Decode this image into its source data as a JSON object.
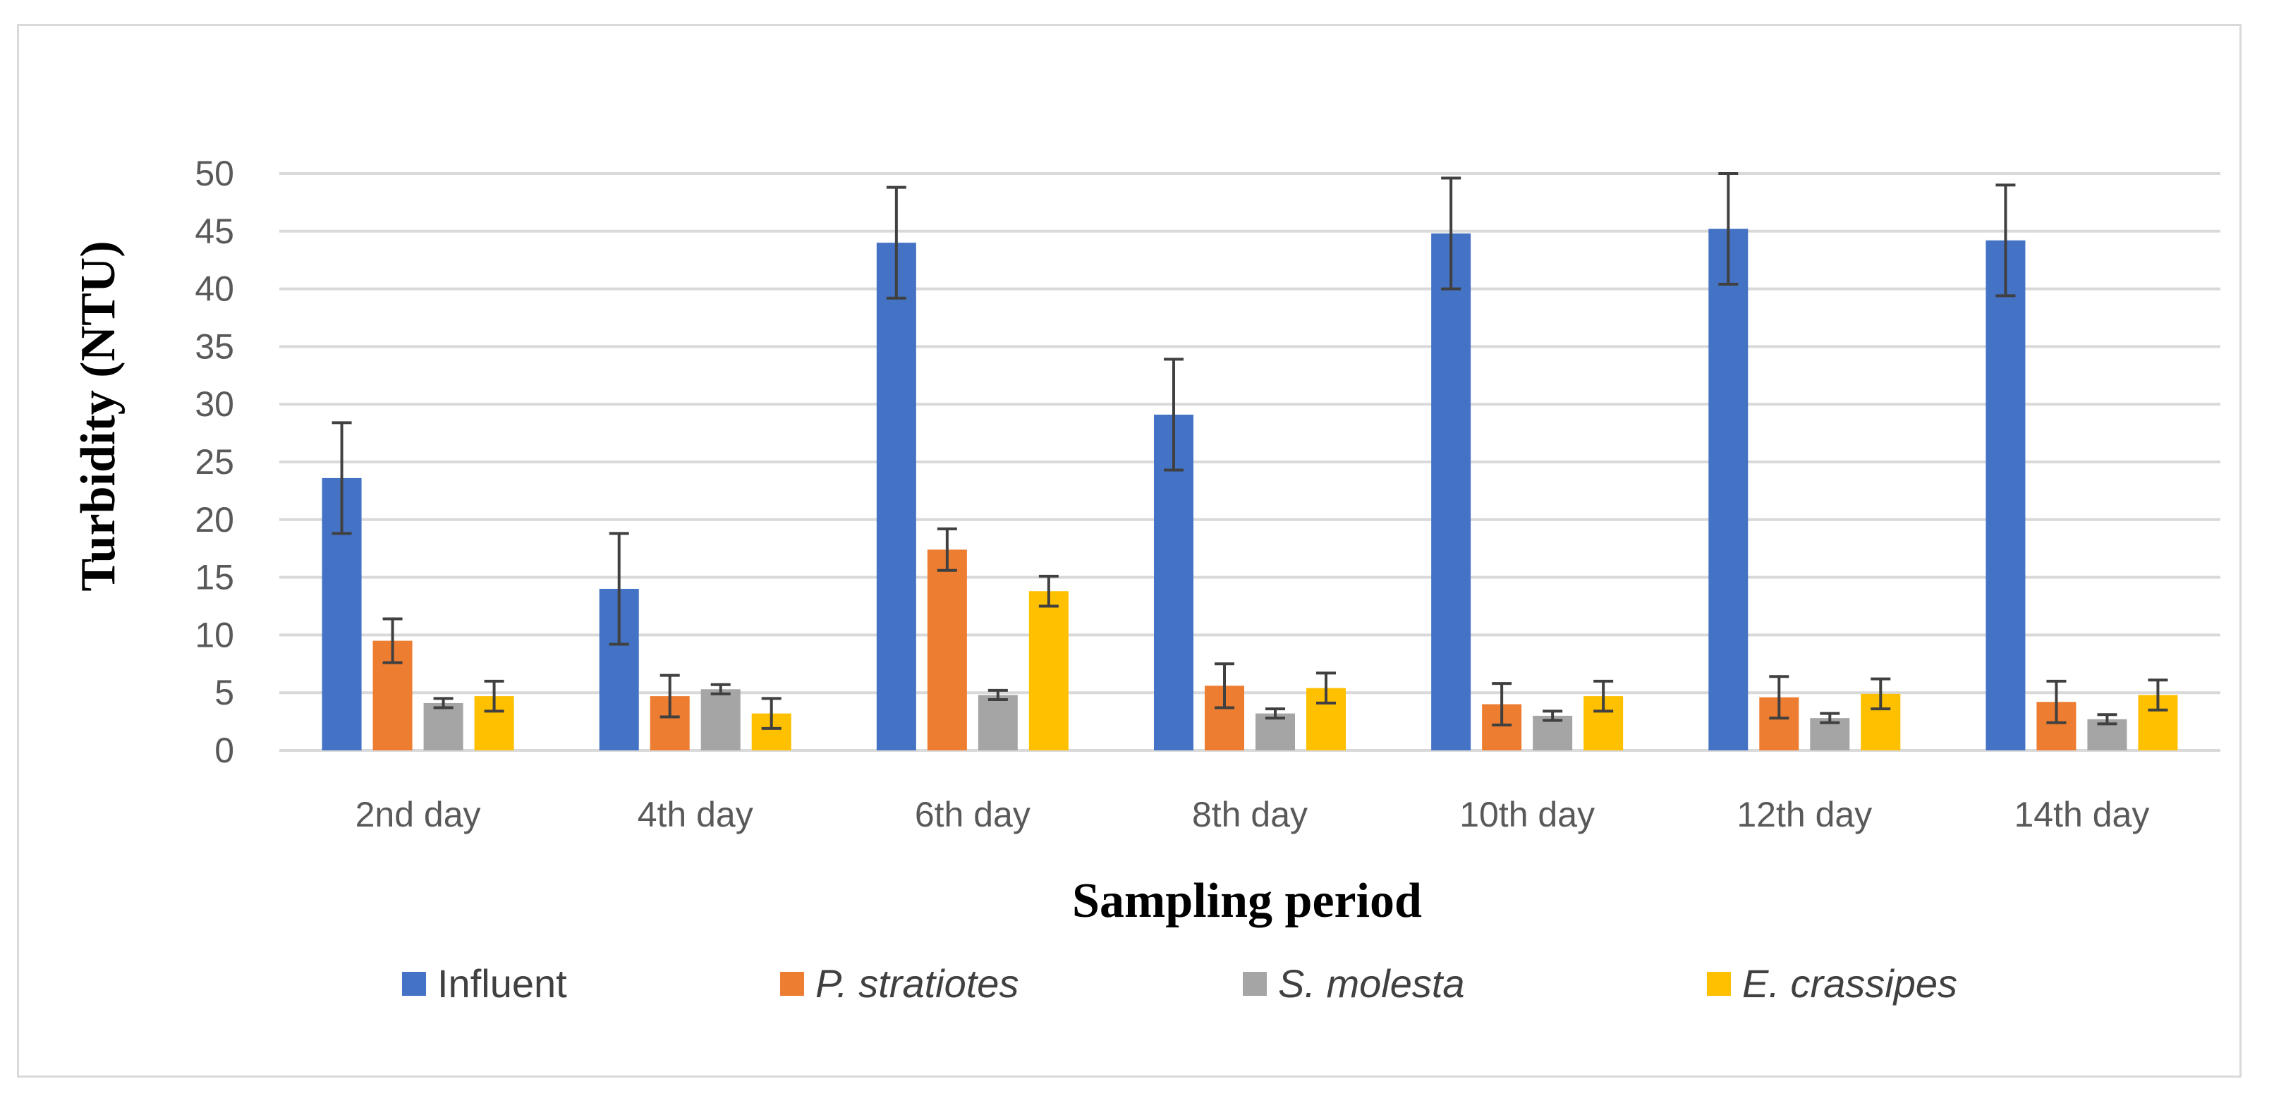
{
  "chart_data": {
    "type": "bar",
    "title": "",
    "xlabel": "Sampling period",
    "ylabel": "Turbidity (NTU)",
    "ylim": [
      0,
      50
    ],
    "yticks": [
      0,
      5,
      10,
      15,
      20,
      25,
      30,
      35,
      40,
      45,
      50
    ],
    "grid": true,
    "legend_position": "bottom",
    "categories": [
      "2nd day",
      "4th day",
      "6th day",
      "8th day",
      "10th day",
      "12th day",
      "14th day"
    ],
    "series": [
      {
        "name": "Influent",
        "italic": false,
        "color": "#4472C4",
        "values": [
          23.6,
          14.0,
          44.0,
          29.1,
          44.8,
          45.2,
          44.2
        ],
        "errors": [
          4.8,
          4.8,
          4.8,
          4.8,
          4.8,
          4.8,
          4.8
        ]
      },
      {
        "name": "P. stratiotes",
        "italic": true,
        "color": "#ED7D31",
        "values": [
          9.5,
          4.7,
          17.4,
          5.6,
          4.0,
          4.6,
          4.2
        ],
        "errors": [
          1.9,
          1.8,
          1.8,
          1.9,
          1.8,
          1.8,
          1.8
        ]
      },
      {
        "name": "S. molesta",
        "italic": true,
        "color": "#A5A5A5",
        "values": [
          4.1,
          5.3,
          4.8,
          3.2,
          3.0,
          2.8,
          2.7
        ],
        "errors": [
          0.4,
          0.4,
          0.4,
          0.4,
          0.4,
          0.4,
          0.4
        ]
      },
      {
        "name": "E. crassipes",
        "italic": true,
        "color": "#FFC000",
        "values": [
          4.7,
          3.2,
          13.8,
          5.4,
          4.7,
          4.9,
          4.8
        ],
        "errors": [
          1.3,
          1.3,
          1.3,
          1.3,
          1.3,
          1.3,
          1.3
        ]
      }
    ]
  },
  "style": {
    "gridline_color": "#d9d9d9",
    "errorbar_color": "#404040",
    "border_color": "#d9d9d9"
  }
}
